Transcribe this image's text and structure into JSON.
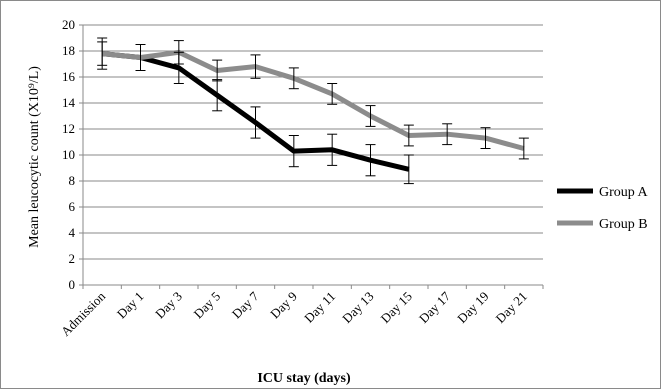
{
  "chart_data": {
    "type": "line",
    "title": "",
    "xlabel": "ICU stay (days)",
    "ylabel": "Mean leucocytic count (X10⁹/L)",
    "ylim": [
      0,
      20
    ],
    "ytick_step": 2,
    "grid": "horizontal",
    "legend_position": "right",
    "categories": [
      "Admission",
      "Day 1",
      "Day 3",
      "Day 5",
      "Day 7",
      "Day 9",
      "Day 11",
      "Day 13",
      "Day 15",
      "Day 17",
      "Day 19",
      "Day 21"
    ],
    "series": [
      {
        "name": "Group A",
        "color": "#000000",
        "values": [
          17.8,
          17.5,
          16.7,
          14.6,
          12.5,
          10.3,
          10.4,
          9.6,
          8.9,
          null,
          null,
          null
        ],
        "error": [
          1.2,
          1.0,
          1.2,
          1.2,
          1.2,
          1.2,
          1.2,
          1.2,
          1.1,
          null,
          null,
          null
        ]
      },
      {
        "name": "Group B",
        "color": "#8c8c8c",
        "values": [
          17.8,
          17.5,
          17.9,
          16.5,
          16.8,
          15.9,
          14.7,
          13.0,
          11.5,
          11.6,
          11.3,
          10.5
        ],
        "error": [
          0.9,
          1.0,
          0.9,
          0.8,
          0.9,
          0.8,
          0.8,
          0.8,
          0.8,
          0.8,
          0.8,
          0.8
        ]
      }
    ]
  }
}
